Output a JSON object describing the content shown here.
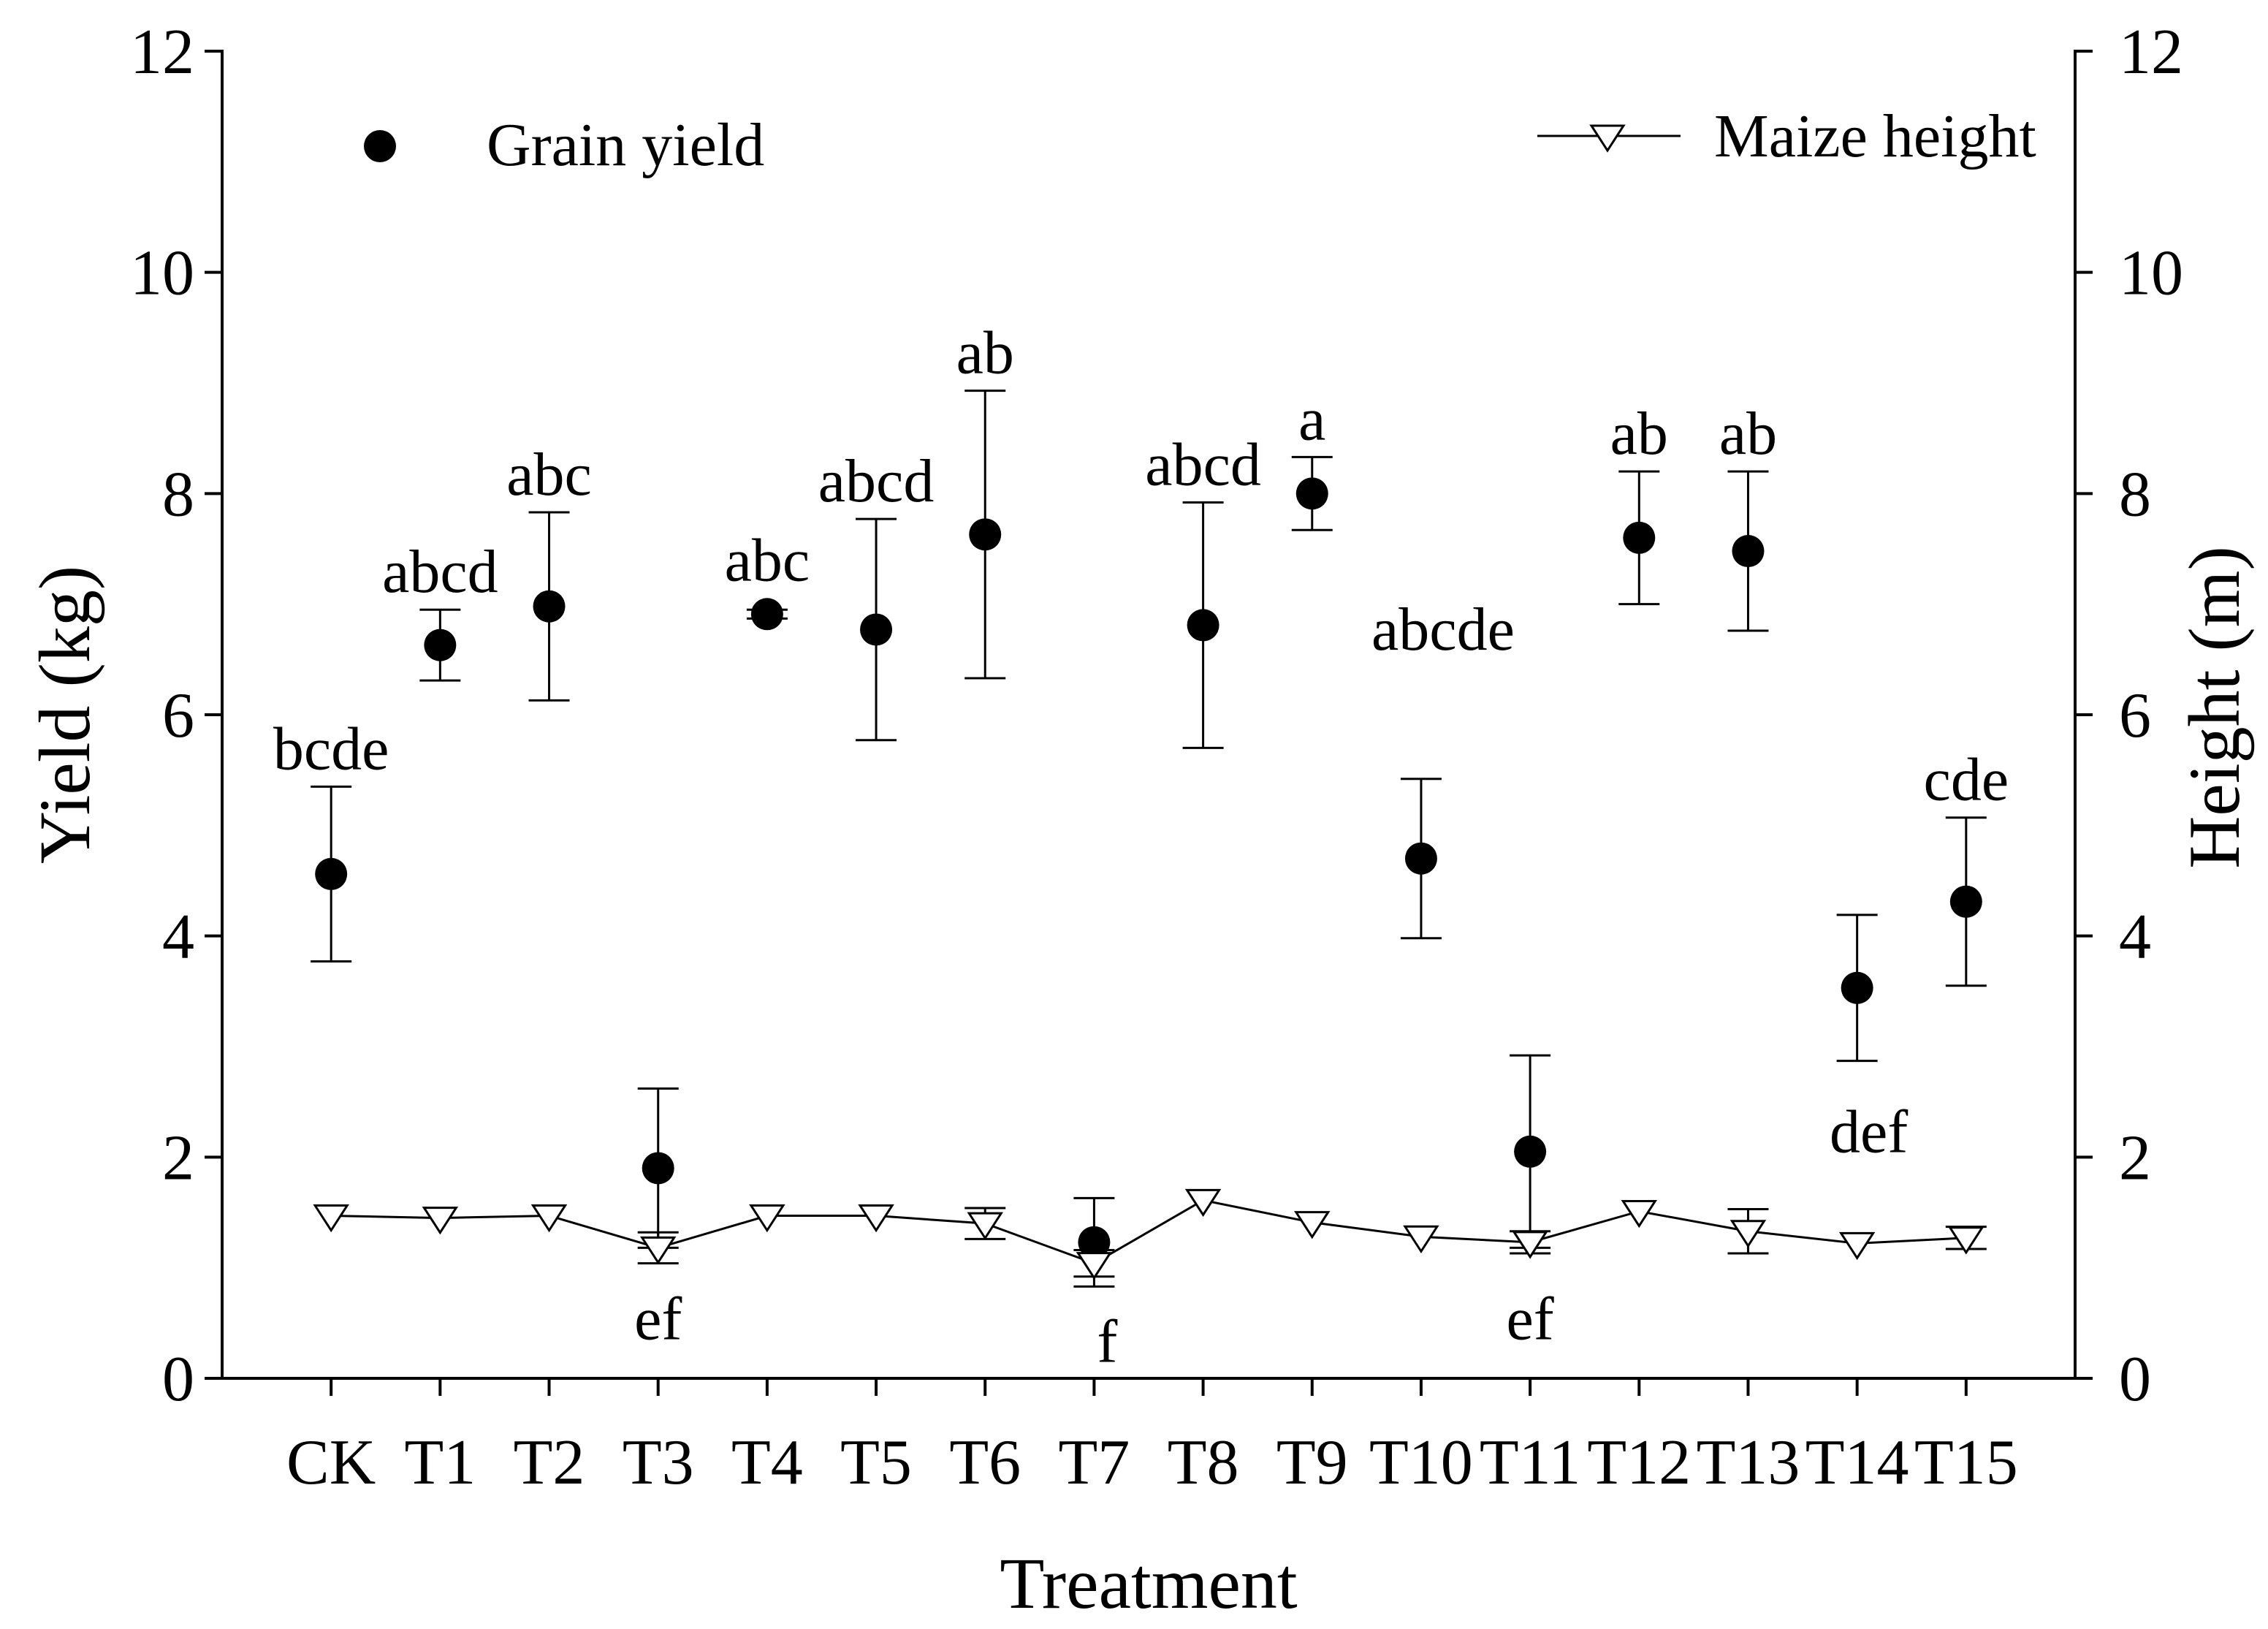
{
  "chart_data": {
    "type": "scatter",
    "categories": [
      "CK",
      "T1",
      "T2",
      "T3",
      "T4",
      "T5",
      "T6",
      "T7",
      "T8",
      "T9",
      "T10",
      "T11",
      "T12",
      "T13",
      "T14",
      "T15"
    ],
    "xlabel": "Treatment",
    "ylabel": "Yield (kg)",
    "y2label": "Height (m)",
    "ylim": [
      0,
      12
    ],
    "y2lim": [
      0,
      12
    ],
    "yticks": [
      0,
      2,
      4,
      6,
      8,
      10,
      12
    ],
    "y2ticks": [
      0,
      2,
      4,
      6,
      8,
      10,
      12
    ],
    "grid": false,
    "series": [
      {
        "name": "Grain yield",
        "type": "scatter",
        "axis": "left",
        "marker": "filled-circle",
        "color": "#000000",
        "legend": "top-left",
        "values": [
          4.56,
          6.63,
          6.98,
          1.9,
          6.91,
          6.77,
          7.63,
          1.23,
          6.81,
          8.0,
          4.7,
          2.05,
          7.6,
          7.48,
          3.53,
          4.31
        ],
        "errors": [
          0.79,
          0.32,
          0.85,
          0.72,
          0.04,
          1.0,
          1.3,
          0.4,
          1.11,
          0.33,
          0.72,
          0.87,
          0.6,
          0.72,
          0.66,
          0.76
        ],
        "letters": [
          "bcde",
          "abcd",
          "abc",
          "ef",
          "abc",
          "abcd",
          "ab",
          "f",
          "abcd",
          "a",
          "abcde",
          "ef",
          "ab",
          "ab",
          "def",
          "cde"
        ],
        "letter_position": [
          "above",
          "above",
          "above",
          "below",
          "above",
          "above",
          "above",
          "below",
          "above",
          "above",
          "above",
          "below",
          "above",
          "above",
          "below",
          "above"
        ]
      },
      {
        "name": "Maize height",
        "type": "line",
        "axis": "right",
        "marker": "open-triangle-down",
        "color": "#000000",
        "marker_fill": "#ffffff",
        "legend": "top-right",
        "values": [
          1.47,
          1.45,
          1.47,
          1.18,
          1.47,
          1.47,
          1.4,
          1.04,
          1.61,
          1.41,
          1.28,
          1.23,
          1.51,
          1.33,
          1.22,
          1.27
        ],
        "errors": [
          null,
          null,
          null,
          0.14,
          null,
          null,
          0.14,
          0.12,
          null,
          null,
          null,
          0.1,
          null,
          0.2,
          null,
          0.1
        ]
      }
    ]
  }
}
